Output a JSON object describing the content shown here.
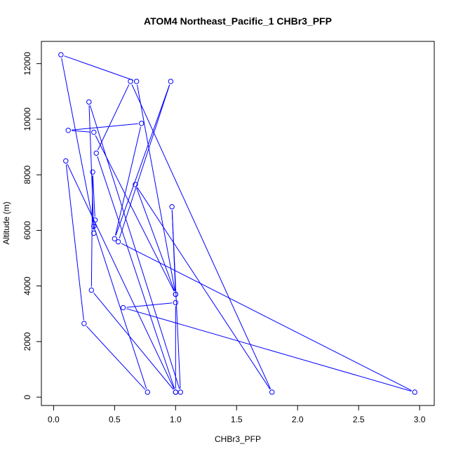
{
  "chart_data": {
    "type": "line",
    "title": "ATOM4 Northeast_Pacific_1 CHBr3_PFP",
    "xlabel": "CHBr3_PFP",
    "ylabel": "Altitude (m)",
    "xlim": [
      0,
      3.0
    ],
    "ylim": [
      0,
      12000
    ],
    "xticks": [
      {
        "value": 0.0,
        "label": "0.0"
      },
      {
        "value": 0.5,
        "label": "0.5"
      },
      {
        "value": 1.0,
        "label": "1.0"
      },
      {
        "value": 1.5,
        "label": "1.5"
      },
      {
        "value": 2.0,
        "label": "2.0"
      },
      {
        "value": 2.5,
        "label": "2.5"
      },
      {
        "value": 3.0,
        "label": "3.0"
      }
    ],
    "yticks": [
      {
        "value": 0,
        "label": "0"
      },
      {
        "value": 2000,
        "label": "2000"
      },
      {
        "value": 4000,
        "label": "4000"
      },
      {
        "value": 6000,
        "label": "6000"
      },
      {
        "value": 8000,
        "label": "8000"
      },
      {
        "value": 10000,
        "label": "10000"
      },
      {
        "value": 12000,
        "label": "12000"
      }
    ],
    "grid": false,
    "color": "#0000ff",
    "series": [
      {
        "x": [
          0.06,
          0.33,
          0.77,
          0.25,
          0.1,
          1.0,
          0.35,
          0.63,
          1.79,
          0.67,
          1.0,
          0.33,
          0.12,
          0.72,
          0.5,
          0.96,
          0.53,
          2.96,
          0.57,
          1.0,
          1.0,
          0.31,
          0.32,
          0.34,
          0.33,
          0.29,
          1.04,
          0.97,
          1.0,
          0.68,
          0.06
        ],
        "y": [
          12320,
          6150,
          180,
          2650,
          8500,
          180,
          8780,
          11360,
          180,
          7650,
          3700,
          9530,
          9600,
          9850,
          5700,
          11360,
          5590,
          180,
          3220,
          3400,
          180,
          3850,
          8100,
          6370,
          5900,
          10620,
          180,
          6850,
          3700,
          11360,
          12320
        ]
      }
    ]
  }
}
